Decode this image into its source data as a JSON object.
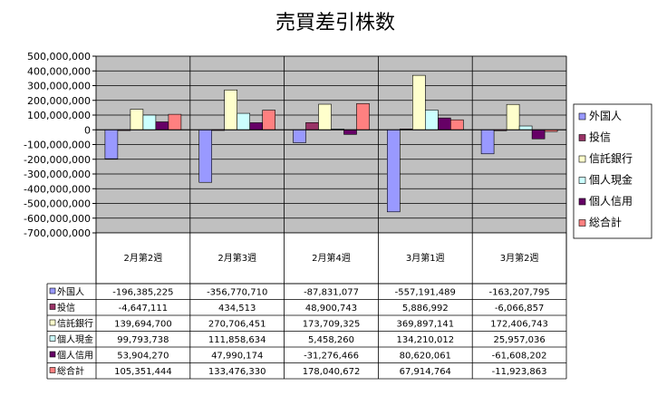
{
  "chart_data": {
    "type": "bar",
    "title": "売買差引株数",
    "categories": [
      "2月第2週",
      "2月第3週",
      "2月第4週",
      "3月第1週",
      "3月第2週"
    ],
    "ylim": [
      -700000000,
      500000000
    ],
    "y_ticks": [
      "500,000,000",
      "400,000,000",
      "300,000,000",
      "200,000,000",
      "100,000,000",
      "0",
      "-100,000,000",
      "-200,000,000",
      "-300,000,000",
      "-400,000,000",
      "-500,000,000",
      "-600,000,000",
      "-700,000,000"
    ],
    "grid": true,
    "legend_position": "right",
    "series": [
      {
        "name": "外国人",
        "color": "#9999ff",
        "values": [
          -196385225,
          -356770710,
          -87831077,
          -557191489,
          -163207795
        ],
        "labels": [
          "-196,385,225",
          "-356,770,710",
          "-87,831,077",
          "-557,191,489",
          "-163,207,795"
        ]
      },
      {
        "name": "投信",
        "color": "#993366",
        "values": [
          -4647111,
          434513,
          48900743,
          5886992,
          -6066857
        ],
        "labels": [
          "-4,647,111",
          "434,513",
          "48,900,743",
          "5,886,992",
          "-6,066,857"
        ]
      },
      {
        "name": "信託銀行",
        "color": "#ffffcc",
        "values": [
          139694700,
          270706451,
          173709325,
          369897141,
          172406743
        ],
        "labels": [
          "139,694,700",
          "270,706,451",
          "173,709,325",
          "369,897,141",
          "172,406,743"
        ]
      },
      {
        "name": "個人現金",
        "color": "#ccffff",
        "values": [
          99793738,
          111858634,
          5458260,
          134210012,
          25957036
        ],
        "labels": [
          "99,793,738",
          "111,858,634",
          "5,458,260",
          "134,210,012",
          "25,957,036"
        ]
      },
      {
        "name": "個人信用",
        "color": "#660066",
        "values": [
          53904270,
          47990174,
          -31276466,
          80620061,
          -61608202
        ],
        "labels": [
          "53,904,270",
          "47,990,174",
          "-31,276,466",
          "80,620,061",
          "-61,608,202"
        ]
      },
      {
        "name": "総合計",
        "color": "#ff8080",
        "values": [
          105351444,
          133476330,
          178040672,
          67914764,
          -11923863
        ],
        "labels": [
          "105,351,444",
          "133,476,330",
          "178,040,672",
          "67,914,764",
          "-11,923,863"
        ]
      }
    ],
    "colors": {
      "plot_background": "#c0c0c0",
      "gridline": "#000000"
    }
  }
}
